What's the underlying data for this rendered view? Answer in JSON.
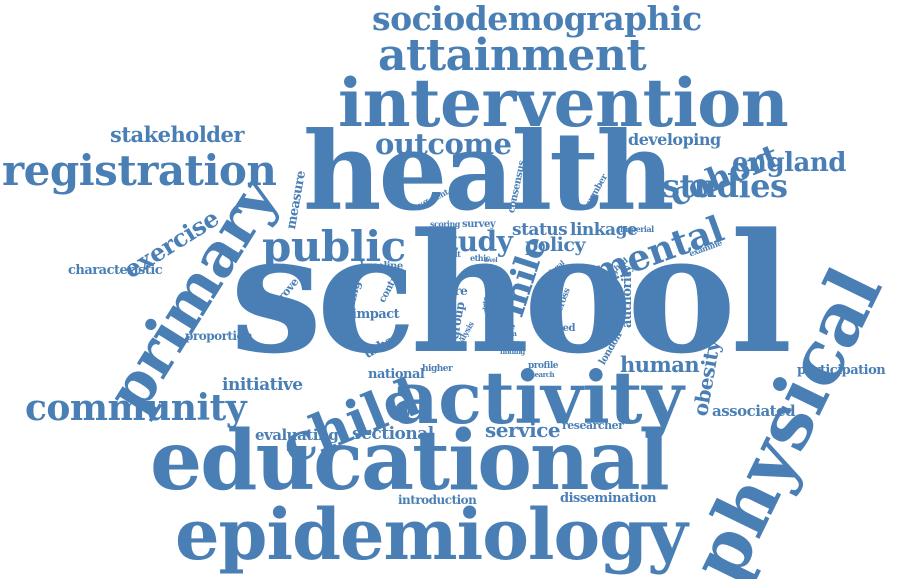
{
  "word_color": "#4a7fb5",
  "background": "#ffffff",
  "words": [
    "sociodemographic",
    "attainment",
    "intervention",
    "health",
    "school",
    "primary",
    "physical",
    "activity",
    "educational",
    "epidemiology",
    "registration",
    "community",
    "child",
    "public",
    "mental",
    "cohort",
    "studies",
    "england",
    "outcome",
    "stakeholder",
    "exercise",
    "characteristic",
    "developing",
    "study",
    "policy",
    "status",
    "linkage",
    "mile",
    "human",
    "obesity",
    "associated",
    "participation",
    "service",
    "sectional",
    "evaluating",
    "initiative",
    "proportion",
    "national",
    "introduction",
    "dissemination",
    "researcher",
    "measure",
    "improve",
    "meeting",
    "impact",
    "urban",
    "baseline",
    "control",
    "core",
    "group",
    "analysis",
    "data",
    "state",
    "media",
    "college",
    "finding",
    "profile",
    "research",
    "higher",
    "based",
    "area",
    "cross",
    "year",
    "authority",
    "examine",
    "method",
    "setting",
    "imperial",
    "survey",
    "scoring",
    "different",
    "consensus",
    "number",
    "result",
    "ethic",
    "london",
    "level",
    "active",
    "legal",
    "merge"
  ]
}
